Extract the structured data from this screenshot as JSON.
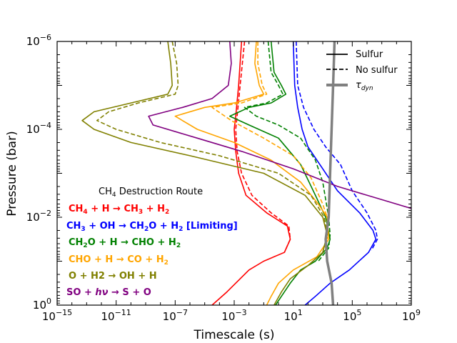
{
  "chart_data": {
    "type": "line",
    "title": "",
    "xlabel": "Timescale (s)",
    "ylabel": "Pressure (bar)",
    "xscale": "log",
    "yscale": "log",
    "xlim": [
      1e-15,
      1000000000.0
    ],
    "ylim": [
      1,
      1e-06
    ],
    "x_ticks": [
      {
        "base": "10",
        "exp": "−15",
        "value_exp": -15
      },
      {
        "base": "10",
        "exp": "−11",
        "value_exp": -11
      },
      {
        "base": "10",
        "exp": "−7",
        "value_exp": -7
      },
      {
        "base": "10",
        "exp": "−3",
        "value_exp": -3
      },
      {
        "base": "10",
        "exp": "1",
        "value_exp": 1
      },
      {
        "base": "10",
        "exp": "5",
        "value_exp": 5
      },
      {
        "base": "10",
        "exp": "9",
        "value_exp": 9
      }
    ],
    "y_ticks": [
      {
        "base": "10",
        "exp": "−6",
        "value_exp": -6
      },
      {
        "base": "10",
        "exp": "−4",
        "value_exp": -4
      },
      {
        "base": "10",
        "exp": "−2",
        "value_exp": -2
      },
      {
        "base": "10",
        "exp": "0",
        "value_exp": 0
      }
    ],
    "legend": {
      "position": "top-right",
      "entries": [
        {
          "label": "Sulfur",
          "style": "solid",
          "color": "#000000"
        },
        {
          "label": "No sulfur",
          "style": "dashed",
          "color": "#000000"
        },
        {
          "label_base": "τ",
          "label_sub": "dyn",
          "style": "thick",
          "color": "#808080"
        }
      ]
    },
    "annotation": {
      "title_pre": "CH",
      "title_sub": "4",
      "title_post": " Destruction Route",
      "routes": [
        {
          "color": "#ff0000",
          "segments": [
            [
              "CH",
              "n"
            ],
            [
              "4",
              "s"
            ],
            [
              " + H → CH",
              "n"
            ],
            [
              "3",
              "s"
            ],
            [
              " + H",
              "n"
            ],
            [
              "2",
              "s"
            ]
          ]
        },
        {
          "color": "#0000ff",
          "segments": [
            [
              "CH",
              "n"
            ],
            [
              "3",
              "s"
            ],
            [
              " + OH → CH",
              "n"
            ],
            [
              "2",
              "s"
            ],
            [
              "O + H",
              "n"
            ],
            [
              "2",
              "s"
            ],
            [
              " [Limiting]",
              "n"
            ]
          ]
        },
        {
          "color": "#008000",
          "segments": [
            [
              "CH",
              "n"
            ],
            [
              "2",
              "s"
            ],
            [
              "O + H → CHO + H",
              "n"
            ],
            [
              "2",
              "s"
            ]
          ]
        },
        {
          "color": "#ffa500",
          "segments": [
            [
              "CHO + H → CO + H",
              "n"
            ],
            [
              "2",
              "s"
            ]
          ]
        },
        {
          "color": "#808000",
          "segments": [
            [
              "O + H2 → OH + H",
              "n"
            ]
          ]
        },
        {
          "color": "#800080",
          "segments": [
            [
              "SO + ",
              "n"
            ],
            [
              "hν",
              "i"
            ],
            [
              " → S + O",
              "n"
            ]
          ]
        }
      ]
    },
    "series": [
      {
        "name": "CH4 + H → CH3 + H2 (sulfur)",
        "color": "#ff0000",
        "style": "solid",
        "points": [
          [
            -2.5,
            -6
          ],
          [
            -2.7,
            -5
          ],
          [
            -2.9,
            -4.3
          ],
          [
            -3.0,
            -4.0
          ],
          [
            -2.9,
            -3.5
          ],
          [
            -2.7,
            -3.0
          ],
          [
            -2.2,
            -2.5
          ],
          [
            -0.8,
            -2.1
          ],
          [
            0.6,
            -1.8
          ],
          [
            0.8,
            -1.5
          ],
          [
            0.4,
            -1.2
          ],
          [
            -1.0,
            -1.0
          ],
          [
            -2.0,
            -0.8
          ],
          [
            -3.5,
            -0.3
          ],
          [
            -4.5,
            0
          ]
        ]
      },
      {
        "name": "CH4 + H → CH3 + H2 (no sulfur)",
        "color": "#ff0000",
        "style": "dashed",
        "points": [
          [
            -2.3,
            -6
          ],
          [
            -2.6,
            -5
          ],
          [
            -2.8,
            -4.3
          ],
          [
            -2.9,
            -4.0
          ],
          [
            -2.8,
            -3.5
          ],
          [
            -2.5,
            -3.0
          ],
          [
            -1.8,
            -2.5
          ],
          [
            -0.5,
            -2.1
          ],
          [
            0.7,
            -1.8
          ],
          [
            0.8,
            -1.5
          ],
          [
            0.4,
            -1.2
          ]
        ]
      },
      {
        "name": "CH3 + OH → CH2O + H2 (sulfur)",
        "color": "#0000ff",
        "style": "solid",
        "points": [
          [
            1.0,
            -6
          ],
          [
            1.1,
            -5
          ],
          [
            1.3,
            -4.5
          ],
          [
            1.6,
            -4.0
          ],
          [
            2.0,
            -3.6
          ],
          [
            2.8,
            -3.2
          ],
          [
            4.0,
            -2.6
          ],
          [
            5.5,
            -2.1
          ],
          [
            6.4,
            -1.7
          ],
          [
            6.6,
            -1.5
          ],
          [
            6.1,
            -1.2
          ],
          [
            4.8,
            -0.8
          ],
          [
            3.5,
            -0.5
          ],
          [
            2.5,
            -0.2
          ],
          [
            1.8,
            0
          ]
        ]
      },
      {
        "name": "CH3 + OH → CH2O + H2 (no sulfur)",
        "color": "#0000ff",
        "style": "dashed",
        "points": [
          [
            1.2,
            -6
          ],
          [
            1.3,
            -5
          ],
          [
            1.7,
            -4.5
          ],
          [
            2.4,
            -4.0
          ],
          [
            3.2,
            -3.6
          ],
          [
            4.2,
            -3.2
          ],
          [
            5.0,
            -2.6
          ],
          [
            6.0,
            -2.1
          ],
          [
            6.6,
            -1.7
          ],
          [
            6.7,
            -1.5
          ],
          [
            6.3,
            -1.25
          ]
        ]
      },
      {
        "name": "CH2O + H → CHO + H2 (sulfur)",
        "color": "#008000",
        "style": "solid",
        "points": [
          [
            -0.5,
            -6
          ],
          [
            -0.3,
            -5.3
          ],
          [
            0.2,
            -5.0
          ],
          [
            0.5,
            -4.8
          ],
          [
            -0.5,
            -4.6
          ],
          [
            -2.0,
            -4.5
          ],
          [
            -3.3,
            -4.3
          ],
          [
            -2.0,
            -4.1
          ],
          [
            0.0,
            -3.8
          ],
          [
            1.5,
            -3.2
          ],
          [
            2.5,
            -2.5
          ],
          [
            3.2,
            -2.0
          ],
          [
            3.5,
            -1.5
          ],
          [
            3.3,
            -1.3
          ],
          [
            2.5,
            -1.0
          ],
          [
            1.5,
            -0.8
          ],
          [
            0.8,
            -0.5
          ],
          [
            0.2,
            -0.2
          ],
          [
            -0.2,
            0
          ]
        ]
      },
      {
        "name": "CH2O + H → CHO + H2 (no sulfur)",
        "color": "#008000",
        "style": "dashed",
        "points": [
          [
            -0.7,
            -6
          ],
          [
            -0.5,
            -5.3
          ],
          [
            0.0,
            -5.0
          ],
          [
            0.3,
            -4.8
          ],
          [
            -0.8,
            -4.6
          ],
          [
            -2.3,
            -4.5
          ],
          [
            -1.5,
            -4.3
          ],
          [
            0.0,
            -4.1
          ],
          [
            1.5,
            -3.8
          ],
          [
            2.5,
            -3.3
          ],
          [
            3.0,
            -2.8
          ],
          [
            3.4,
            -2.0
          ],
          [
            3.5,
            -1.6
          ],
          [
            3.4,
            -1.3
          ],
          [
            2.7,
            -1.0
          ]
        ]
      },
      {
        "name": "CHO + H → CO + H2 (sulfur)",
        "color": "#ffa500",
        "style": "solid",
        "points": [
          [
            -1.5,
            -6
          ],
          [
            -1.6,
            -5.5
          ],
          [
            -1.3,
            -5.0
          ],
          [
            -1.0,
            -4.8
          ],
          [
            -3.0,
            -4.6
          ],
          [
            -5.0,
            -4.5
          ],
          [
            -7.0,
            -4.3
          ],
          [
            -5.5,
            -4.0
          ],
          [
            -3.0,
            -3.7
          ],
          [
            -0.5,
            -3.3
          ],
          [
            1.5,
            -2.8
          ],
          [
            2.7,
            -2.3
          ],
          [
            3.3,
            -2.0
          ],
          [
            3.4,
            -1.5
          ],
          [
            2.6,
            -1.1
          ],
          [
            1.0,
            -0.8
          ],
          [
            0.0,
            -0.5
          ],
          [
            -0.5,
            -0.2
          ],
          [
            -0.8,
            0
          ]
        ]
      },
      {
        "name": "CHO + H → CO + H2 (no sulfur)",
        "color": "#ffa500",
        "style": "dashed",
        "points": [
          [
            -1.4,
            -6
          ],
          [
            -1.4,
            -5.5
          ],
          [
            -1.1,
            -5.0
          ],
          [
            -0.8,
            -4.8
          ],
          [
            -2.5,
            -4.6
          ],
          [
            -4.5,
            -4.5
          ],
          [
            -3.2,
            -4.2
          ],
          [
            -1.0,
            -3.8
          ],
          [
            1.0,
            -3.4
          ],
          [
            2.2,
            -2.9
          ],
          [
            3.0,
            -2.3
          ],
          [
            3.3,
            -2.0
          ],
          [
            3.3,
            -1.5
          ]
        ]
      },
      {
        "name": "O + H2 → OH + H (sulfur)",
        "color": "#808000",
        "style": "solid",
        "points": [
          [
            -7.5,
            -6
          ],
          [
            -7.3,
            -5.5
          ],
          [
            -7.2,
            -5.0
          ],
          [
            -7.5,
            -4.8
          ],
          [
            -10,
            -4.6
          ],
          [
            -12.5,
            -4.4
          ],
          [
            -13.3,
            -4.2
          ],
          [
            -12.5,
            -4.0
          ],
          [
            -10.0,
            -3.7
          ],
          [
            -6.0,
            -3.4
          ],
          [
            -1.0,
            -3.0
          ],
          [
            1.8,
            -2.5
          ],
          [
            3.0,
            -2.0
          ],
          [
            3.3,
            -1.6
          ],
          [
            3.0,
            -1.2
          ],
          [
            2.0,
            -0.9
          ],
          [
            0.8,
            -0.6
          ],
          [
            0.2,
            -0.3
          ],
          [
            -0.3,
            0
          ]
        ]
      },
      {
        "name": "O + H2 → OH + H (no sulfur)",
        "color": "#808000",
        "style": "dashed",
        "points": [
          [
            -7.2,
            -6
          ],
          [
            -6.9,
            -5.5
          ],
          [
            -6.8,
            -5.0
          ],
          [
            -7.0,
            -4.8
          ],
          [
            -9.5,
            -4.6
          ],
          [
            -11.5,
            -4.4
          ],
          [
            -12.3,
            -4.2
          ],
          [
            -11.0,
            -4.0
          ],
          [
            -8.0,
            -3.7
          ],
          [
            -4.0,
            -3.4
          ],
          [
            0.0,
            -3.0
          ],
          [
            2.2,
            -2.5
          ],
          [
            3.1,
            -2.0
          ],
          [
            3.3,
            -1.6
          ],
          [
            3.0,
            -1.2
          ]
        ]
      },
      {
        "name": "SO + hν → S + O (sulfur)",
        "color": "#800080",
        "style": "solid",
        "points": [
          [
            -3.3,
            -6
          ],
          [
            -3.2,
            -5.5
          ],
          [
            -3.4,
            -5.0
          ],
          [
            -4.5,
            -4.7
          ],
          [
            -6.5,
            -4.5
          ],
          [
            -8.8,
            -4.3
          ],
          [
            -8.5,
            -4.1
          ],
          [
            -5.5,
            -3.8
          ],
          [
            -2.5,
            -3.5
          ],
          [
            1.0,
            -3.1
          ],
          [
            4.0,
            -2.7
          ],
          [
            7.0,
            -2.4
          ],
          [
            9.0,
            -2.2
          ]
        ]
      },
      {
        "name": "τdyn",
        "color": "#808080",
        "style": "thick",
        "points": [
          [
            3.8,
            -6
          ],
          [
            3.7,
            -5
          ],
          [
            3.6,
            -4
          ],
          [
            3.5,
            -3
          ],
          [
            3.4,
            -2
          ],
          [
            3.2,
            -1.5
          ],
          [
            3.3,
            -1
          ],
          [
            3.6,
            -0.5
          ],
          [
            3.7,
            0
          ]
        ]
      }
    ]
  }
}
